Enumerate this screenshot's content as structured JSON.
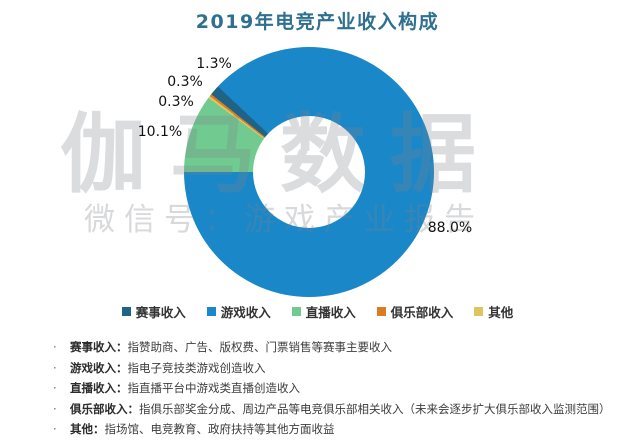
{
  "title": "2019年电竞产业收入构成",
  "watermark": {
    "brand": "伽马数据",
    "wechat": "微信号：游戏产业报告"
  },
  "colors": {
    "event": "#1f6486",
    "game": "#1a87c9",
    "stream": "#71cb90",
    "club": "#db7b22",
    "other": "#ddc55f",
    "title": "#2f6f8f"
  },
  "chart_data": {
    "type": "pie",
    "subtype": "donut",
    "title": "2019年电竞产业收入构成",
    "unit": "%",
    "series": [
      {
        "name": "赛事收入",
        "value": 1.3,
        "label": "1.3%",
        "color": "#1f6486"
      },
      {
        "name": "游戏收入",
        "value": 88.0,
        "label": "88.0%",
        "color": "#1a87c9"
      },
      {
        "name": "直播收入",
        "value": 10.1,
        "label": "10.1%",
        "color": "#71cb90"
      },
      {
        "name": "俱乐部收入",
        "value": 0.3,
        "label": "0.3%",
        "color": "#db7b22"
      },
      {
        "name": "其他",
        "value": 0.3,
        "label": "0.3%",
        "color": "#ddc55f"
      }
    ],
    "slice_labels": [
      "1.3%",
      "0.3%",
      "0.3%",
      "10.1%",
      "88.0%"
    ],
    "legend_position": "below-chart",
    "render_order_clockwise_from_9oclock": [
      "直播收入",
      "其他",
      "俱乐部收入",
      "赛事收入",
      "游戏收入"
    ],
    "start_angle_deg_from_top": 270
  },
  "legend": {
    "items": [
      {
        "label": "赛事收入",
        "color": "#1f6486"
      },
      {
        "label": "游戏收入",
        "color": "#1a87c9"
      },
      {
        "label": "直播收入",
        "color": "#71cb90"
      },
      {
        "label": "俱乐部收入",
        "color": "#db7b22"
      },
      {
        "label": "其他",
        "color": "#ddc55f"
      }
    ]
  },
  "notes": {
    "bullet": "·",
    "separator": "：",
    "items": [
      {
        "term": "赛事收入",
        "desc": "指赞助商、广告、版权费、门票销售等赛事主要收入"
      },
      {
        "term": "游戏收入",
        "desc": "指电子竞技类游戏创造收入"
      },
      {
        "term": "直播收入",
        "desc": "指直播平台中游戏类直播创造收入"
      },
      {
        "term": "俱乐部收入",
        "desc": "指俱乐部奖金分成、周边产品等电竞俱乐部相关收入（未来会逐步扩大俱乐部收入监测范围）"
      },
      {
        "term": "其他",
        "desc": "指场馆、电竞教育、政府扶持等其他方面收益"
      }
    ]
  }
}
